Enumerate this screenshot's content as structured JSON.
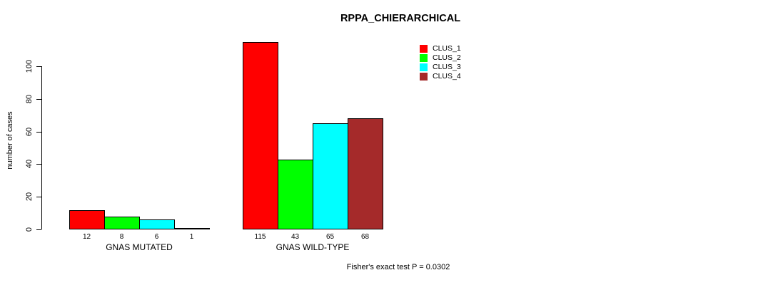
{
  "chart_data": {
    "type": "bar",
    "title": "RPPA_CHIERARCHICAL",
    "xlabel": "",
    "ylabel": "number of cases",
    "ylim": [
      0,
      100
    ],
    "yticks": [
      0,
      20,
      40,
      60,
      80,
      100
    ],
    "grid": false,
    "legend_position": "top-right",
    "bar_value_labels_shown": true,
    "categories": [
      "GNAS MUTATED",
      "GNAS WILD-TYPE"
    ],
    "series": [
      {
        "name": "CLUS_1",
        "color": "#ff0000",
        "values": [
          12,
          115
        ]
      },
      {
        "name": "CLUS_2",
        "color": "#00ff00",
        "values": [
          8,
          43
        ]
      },
      {
        "name": "CLUS_3",
        "color": "#00ffff",
        "values": [
          6,
          65
        ]
      },
      {
        "name": "CLUS_4",
        "color": "#a52a2a",
        "values": [
          1,
          68
        ]
      }
    ],
    "groups": [
      {
        "label": "GNAS MUTATED",
        "values": [
          12,
          8,
          6,
          1
        ]
      },
      {
        "label": "GNAS WILD-TYPE",
        "values": [
          115,
          43,
          65,
          68
        ]
      }
    ]
  },
  "footer": {
    "note": "Fisher's exact test P = 0.0302"
  }
}
